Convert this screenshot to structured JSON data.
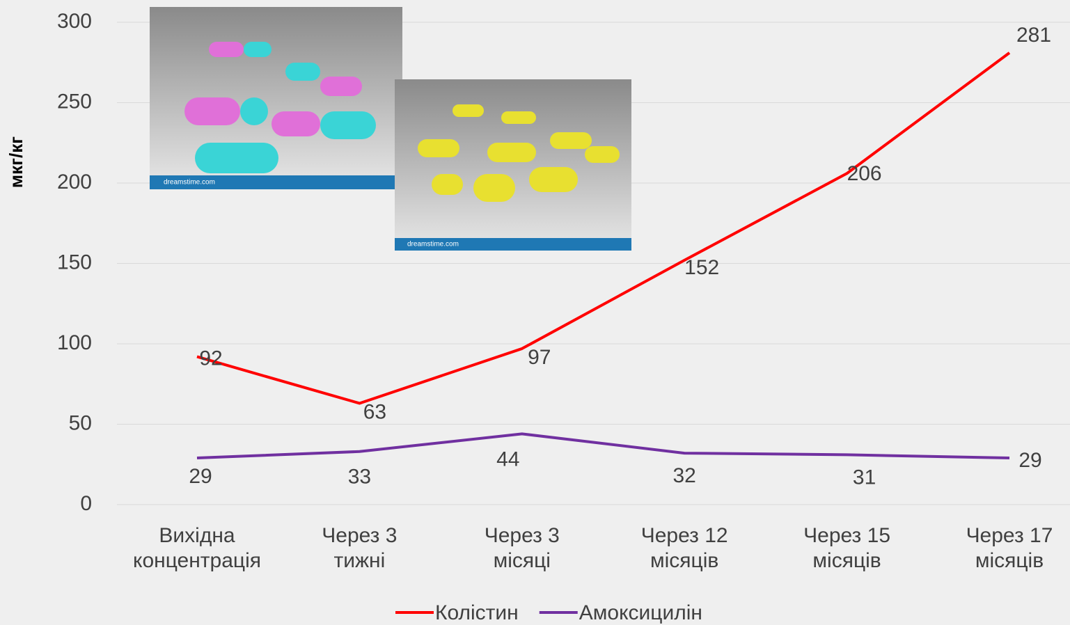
{
  "chart_data": {
    "type": "line",
    "y_label": "мкг/кг",
    "categories": [
      "Вихідна\nконцентрація",
      "Через 3\nтижні",
      "Через 3\nмісяці",
      "Через 12\nмісяців",
      "Через 15\nмісяців",
      "Через 17\nмісяців"
    ],
    "series": [
      {
        "name": "Колістин",
        "color": "#ff0000",
        "values": [
          92,
          63,
          97,
          152,
          206,
          281
        ]
      },
      {
        "name": "Амоксицилін",
        "color": "#7030a0",
        "values": [
          29,
          33,
          44,
          32,
          31,
          29
        ]
      }
    ],
    "ylim": [
      0,
      300
    ],
    "yticks": [
      0,
      50,
      100,
      150,
      200,
      250,
      300
    ],
    "grid": true,
    "legend": "bottom",
    "image_captions": [
      "dreamstime.com",
      "dreamstime.com"
    ]
  }
}
